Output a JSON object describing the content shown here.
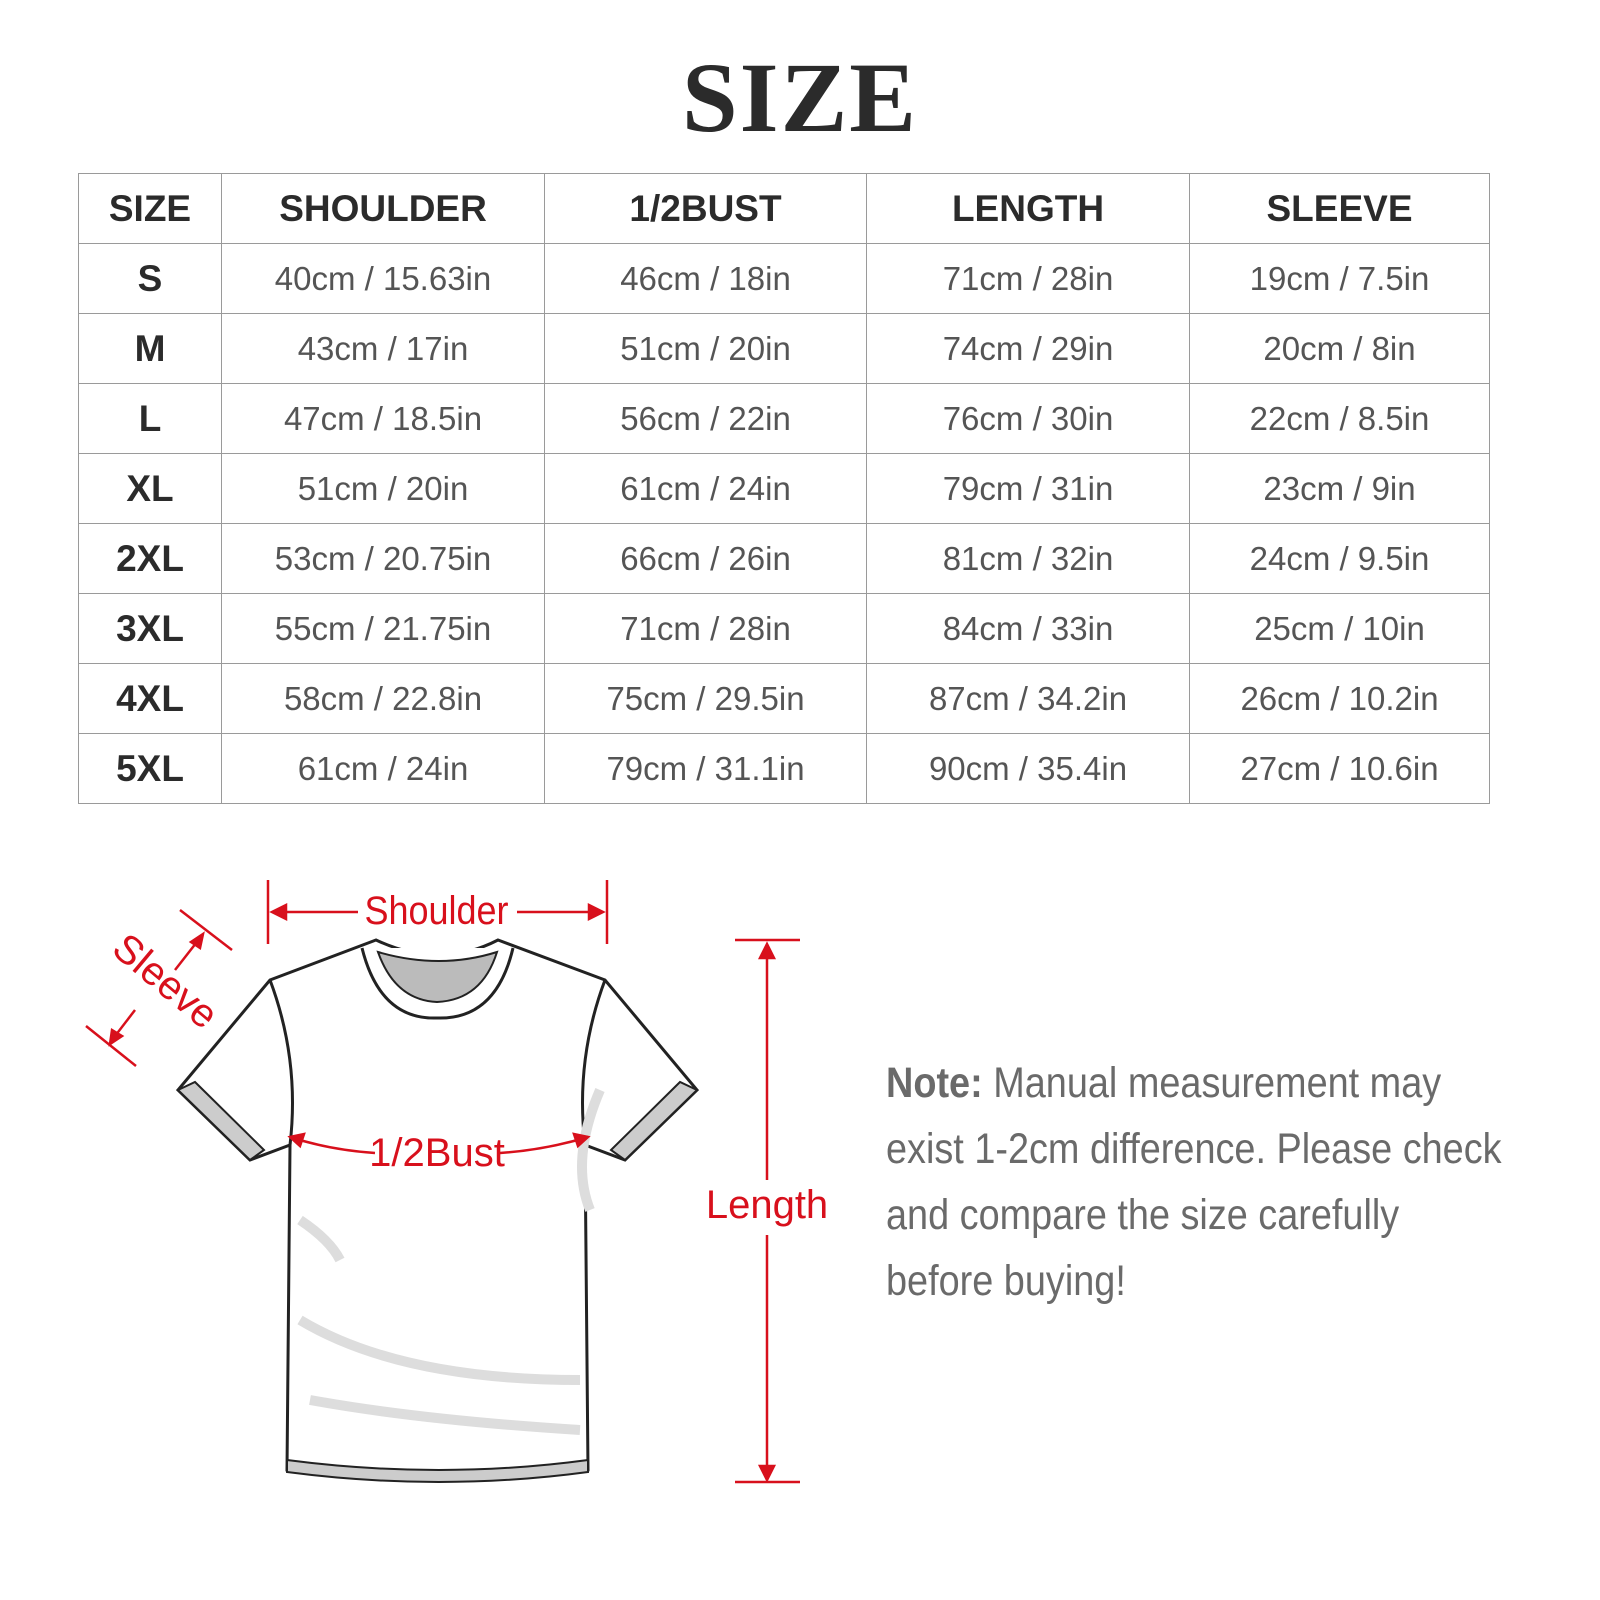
{
  "title": "SIZE",
  "table": {
    "headers": [
      "SIZE",
      "SHOULDER",
      "1/2BUST",
      "LENGTH",
      "SLEEVE"
    ],
    "rows": [
      [
        "S",
        "40cm / 15.63in",
        "46cm / 18in",
        "71cm / 28in",
        "19cm / 7.5in"
      ],
      [
        "M",
        "43cm / 17in",
        "51cm / 20in",
        "74cm / 29in",
        "20cm / 8in"
      ],
      [
        "L",
        "47cm / 18.5in",
        "56cm / 22in",
        "76cm / 30in",
        "22cm / 8.5in"
      ],
      [
        "XL",
        "51cm / 20in",
        "61cm / 24in",
        "79cm / 31in",
        "23cm / 9in"
      ],
      [
        "2XL",
        "53cm / 20.75in",
        "66cm / 26in",
        "81cm / 32in",
        "24cm / 9.5in"
      ],
      [
        "3XL",
        "55cm / 21.75in",
        "71cm / 28in",
        "84cm / 33in",
        "25cm / 10in"
      ],
      [
        "4XL",
        "58cm / 22.8in",
        "75cm / 29.5in",
        "87cm / 34.2in",
        "26cm / 10.2in"
      ],
      [
        "5XL",
        "61cm / 24in",
        "79cm / 31.1in",
        "90cm / 35.4in",
        "27cm / 10.6in"
      ]
    ]
  },
  "diagram": {
    "shoulder_label": "Shoulder",
    "sleeve_label": "Sleeve",
    "bust_label": "1/2Bust",
    "length_label": "Length",
    "accent_color": "#d8101c"
  },
  "note": {
    "label": "Note:",
    "text": "Manual measurement may exist 1-2cm difference. Please check and compare the size carefully before buying!"
  }
}
